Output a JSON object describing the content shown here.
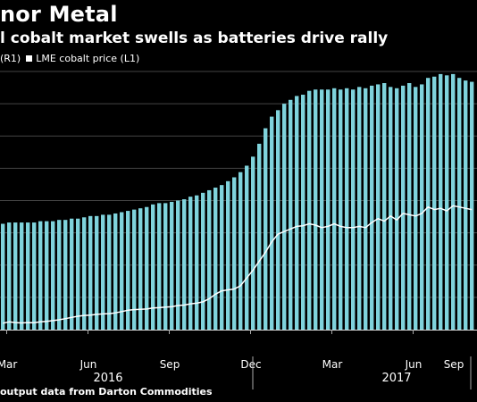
{
  "header": {
    "title": "nor Metal",
    "subtitle": "l cobalt market swells as batteries drive rally"
  },
  "legend": {
    "series1_label": "(R1)",
    "series2_label": "LME cobalt price (L1)"
  },
  "footer": {
    "source": "output data from Darton Commodities"
  },
  "colors": {
    "background": "#000000",
    "bars": "#7fd3dc",
    "line": "#ffffff",
    "grid": "#444444"
  },
  "chart_data": {
    "type": "bar",
    "grid": true,
    "x_tick_labels": [
      "Mar",
      "Jun",
      "Sep",
      "Dec",
      "Mar",
      "Jun",
      "Sep"
    ],
    "x_year_labels": [
      "2016",
      "2017"
    ],
    "series": [
      {
        "name": "(R1)",
        "type": "bar",
        "values": [
          82,
          83,
          83,
          83,
          83,
          83,
          84,
          84,
          84,
          85,
          85,
          86,
          86,
          87,
          88,
          88,
          89,
          89,
          90,
          91,
          92,
          93,
          94,
          95,
          97,
          98,
          98,
          99,
          100,
          101,
          103,
          104,
          106,
          108,
          110,
          112,
          115,
          118,
          122,
          127,
          134,
          144,
          156,
          165,
          170,
          175,
          178,
          181,
          182,
          185,
          186,
          186,
          186,
          187,
          186,
          187,
          186,
          188,
          187,
          189,
          190,
          191,
          188,
          187,
          189,
          191,
          188,
          190,
          195,
          196,
          198,
          197,
          198,
          195,
          193,
          192
        ]
      },
      {
        "name": "LME cobalt price (L1)",
        "type": "line",
        "values": [
          5,
          6,
          5.5,
          5.2,
          5.5,
          5.3,
          6,
          6.4,
          7,
          7.6,
          8.5,
          9.5,
          10.4,
          11,
          11.3,
          11.8,
          12.2,
          12.4,
          13,
          14,
          15,
          15.5,
          15.7,
          16,
          16.8,
          17,
          17.5,
          17.7,
          18.7,
          19,
          20,
          20.5,
          21.5,
          24,
          27.5,
          30,
          30.8,
          31.5,
          34,
          40,
          46,
          53,
          60,
          68,
          74,
          76,
          78,
          80,
          80.5,
          82,
          81,
          79,
          80,
          82,
          80,
          79,
          79,
          80,
          79,
          83,
          86,
          84,
          88,
          85,
          90,
          89,
          88,
          90,
          95,
          93,
          94,
          92,
          96,
          95,
          94,
          93
        ]
      }
    ]
  }
}
